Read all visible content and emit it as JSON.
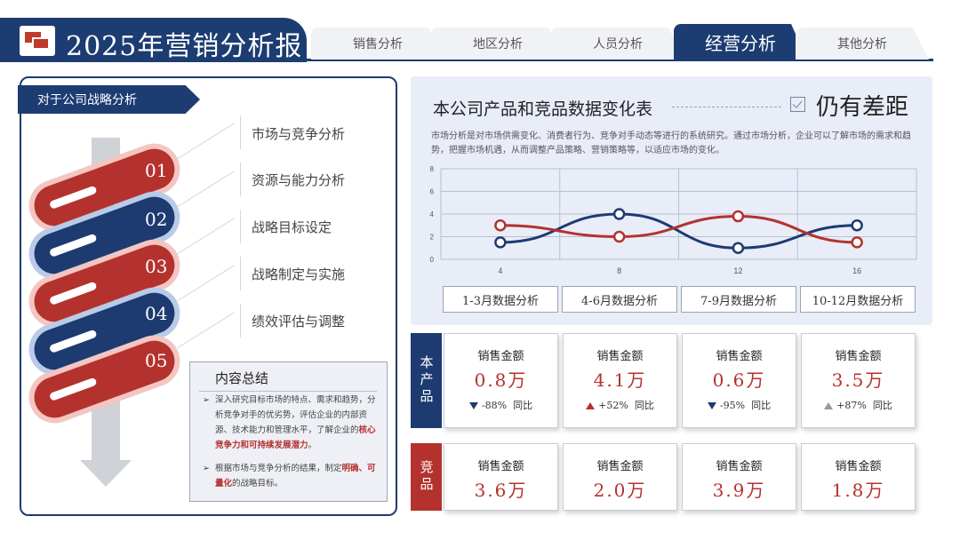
{
  "header": {
    "title": "2025年营销分析报",
    "tabs": [
      "销售分析",
      "地区分析",
      "人员分析",
      "经营分析",
      "其他分析"
    ],
    "active_tab": "经营分析"
  },
  "strategy": {
    "title": "对于公司战略分析",
    "steps": [
      {
        "num": "01",
        "label": "市场与竞争分析"
      },
      {
        "num": "02",
        "label": "资源与能力分析"
      },
      {
        "num": "03",
        "label": "战略目标设定"
      },
      {
        "num": "04",
        "label": "战略制定与实施"
      },
      {
        "num": "05",
        "label": "绩效评估与调整"
      }
    ],
    "summary": {
      "title": "内容总结",
      "bullet1_pre": "深入研究目标市场的特点、需求和趋势，分析竞争对手的优劣势，评估企业的内部资源、技术能力和管理水平，了解企业的",
      "bullet1_hl": "核心竞争力和可持续发展潜力",
      "bullet1_post": "。",
      "bullet2_pre": "根据市场与竞争分析的结果，制定",
      "bullet2_hl": "明确、可量化",
      "bullet2_post": "的战略目标。"
    }
  },
  "comparison": {
    "title": "本公司产品和竞品数据变化表",
    "badge": "仍有差距",
    "description": "市场分析是对市场供需变化、消费者行为、竞争对手动态等进行的系统研究。通过市场分析，企业可以了解市场的需求和趋势，把握市场机遇，从而调整产品策略、营销策略等，以适应市场的变化。",
    "periods": [
      "1-3月数据分析",
      "4-6月数据分析",
      "7-9月数据分析",
      "10-12月数据分析"
    ]
  },
  "chart_data": {
    "type": "line",
    "x": [
      4,
      8,
      12,
      16
    ],
    "ylim": [
      0,
      8
    ],
    "yticks": [
      0,
      2,
      4,
      6,
      8
    ],
    "grid": true,
    "series": [
      {
        "values": [
          1.5,
          4,
          1,
          3
        ],
        "color": "#1d3b70"
      },
      {
        "values": [
          3,
          2,
          3.8,
          1.5
        ],
        "color": "#b4322e"
      }
    ]
  },
  "metrics": {
    "own_label": "本产品",
    "rival_label": "竞品",
    "caption": "销售金额",
    "yoy_label": "同比",
    "own": [
      {
        "value": "0.8万",
        "change": "-88%",
        "trend": "down"
      },
      {
        "value": "4.1万",
        "change": "+52%",
        "trend": "up-red"
      },
      {
        "value": "0.6万",
        "change": "-95%",
        "trend": "down"
      },
      {
        "value": "3.5万",
        "change": "+87%",
        "trend": "up-gray"
      }
    ],
    "rival": [
      {
        "value": "3.6万"
      },
      {
        "value": "2.0万"
      },
      {
        "value": "3.9万"
      },
      {
        "value": "1.8万"
      }
    ]
  },
  "colors": {
    "navy": "#1c3c72",
    "red": "#b4322e",
    "panel": "#e9edf8"
  }
}
